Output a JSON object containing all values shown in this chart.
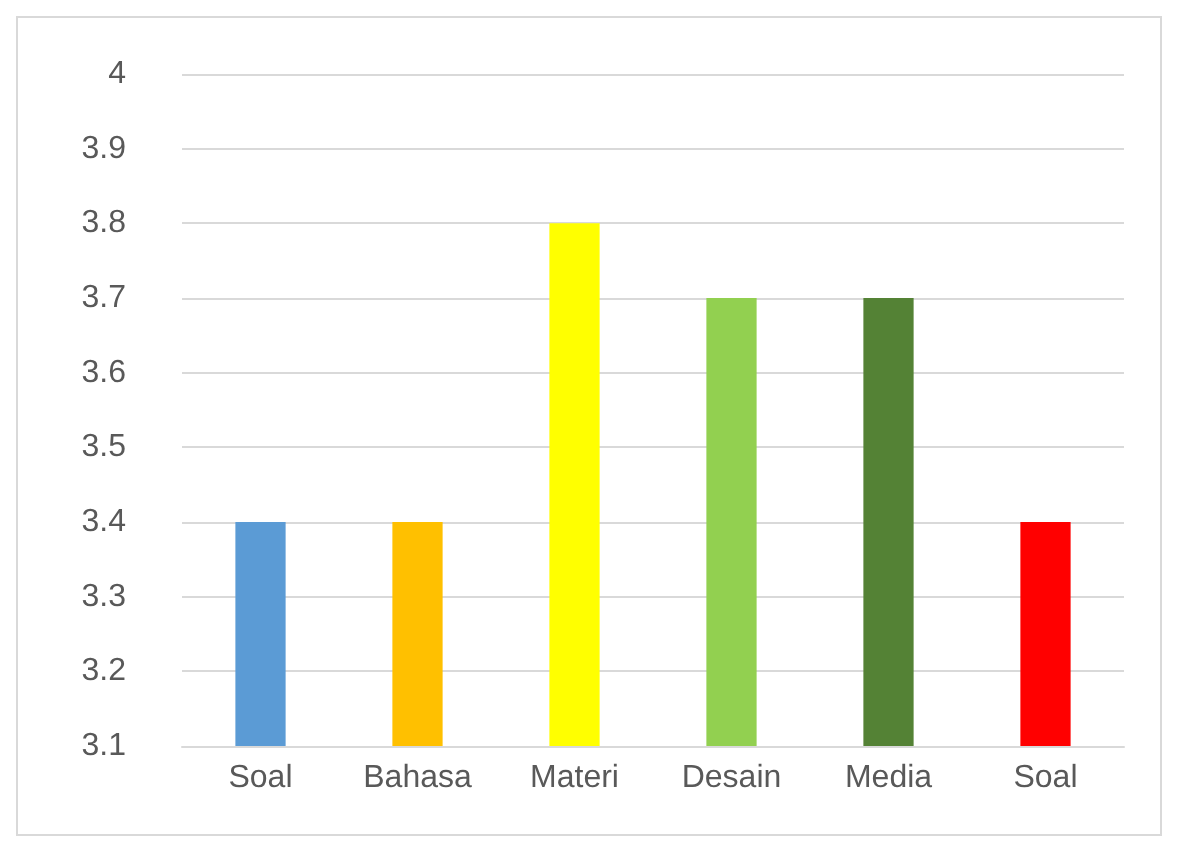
{
  "chart_data": {
    "type": "bar",
    "categories": [
      "Soal",
      "Bahasa",
      "Materi",
      "Desain",
      "Media",
      "Soal"
    ],
    "values": [
      3.4,
      3.4,
      3.8,
      3.7,
      3.7,
      3.4
    ],
    "colors": [
      "#5b9bd5",
      "#ffc000",
      "#ffff00",
      "#92d050",
      "#548235",
      "#ff0000"
    ],
    "ylim": [
      3.1,
      4
    ],
    "yticks": [
      3.1,
      3.2,
      3.3,
      3.4,
      3.5,
      3.6,
      3.7,
      3.8,
      3.9,
      4
    ],
    "grid": "y"
  }
}
